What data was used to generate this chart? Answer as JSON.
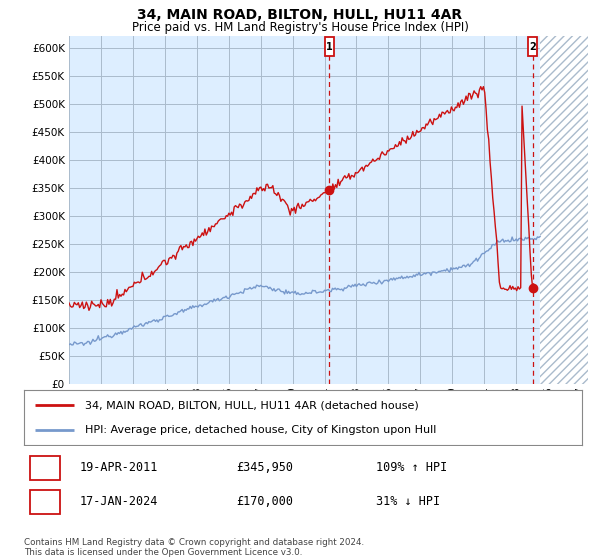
{
  "title": "34, MAIN ROAD, BILTON, HULL, HU11 4AR",
  "subtitle": "Price paid vs. HM Land Registry's House Price Index (HPI)",
  "ytick_values": [
    0,
    50000,
    100000,
    150000,
    200000,
    250000,
    300000,
    350000,
    400000,
    450000,
    500000,
    550000,
    600000
  ],
  "hpi_color": "#7799cc",
  "price_color": "#cc1111",
  "legend_label_red": "34, MAIN ROAD, BILTON, HULL, HU11 4AR (detached house)",
  "legend_label_blue": "HPI: Average price, detached house, City of Kingston upon Hull",
  "annotation1_date": "19-APR-2011",
  "annotation1_price": "£345,950",
  "annotation1_hpi": "109% ↑ HPI",
  "annotation2_date": "17-JAN-2024",
  "annotation2_price": "£170,000",
  "annotation2_hpi": "31% ↓ HPI",
  "footer": "Contains HM Land Registry data © Crown copyright and database right 2024.\nThis data is licensed under the Open Government Licence v3.0.",
  "bg_color": "#ffffff",
  "plot_bg_color": "#ddeeff",
  "grid_color": "#aabbcc",
  "hatch_color": "#aabbcc",
  "xlim_left": 1995.0,
  "xlim_right": 2027.5,
  "ylim_top": 620000,
  "marker1_year": 2011.3,
  "marker2_year": 2024.046,
  "marker1_price": 345950,
  "marker2_price": 170000
}
